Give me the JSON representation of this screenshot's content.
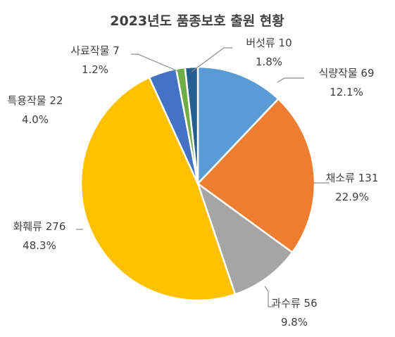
{
  "chart_data": {
    "type": "pie",
    "title": "2023년도 품종보호 출원 현황",
    "slices": [
      {
        "name": "식량작물",
        "value": 69,
        "percent": "12.1%",
        "color": "#5B9BD5"
      },
      {
        "name": "채소류",
        "value": 131,
        "percent": "22.9%",
        "color": "#ED7D31"
      },
      {
        "name": "과수류",
        "value": 56,
        "percent": "9.8%",
        "color": "#A5A5A5"
      },
      {
        "name": "화훼류",
        "value": 276,
        "percent": "48.3%",
        "color": "#FFC000"
      },
      {
        "name": "특용작물",
        "value": 22,
        "percent": "4.0%",
        "color": "#4472C4"
      },
      {
        "name": "사료작물",
        "value": 7,
        "percent": "1.2%",
        "color": "#70AD47"
      },
      {
        "name": "버섯류",
        "value": 10,
        "percent": "1.8%",
        "color": "#255E91"
      }
    ]
  }
}
